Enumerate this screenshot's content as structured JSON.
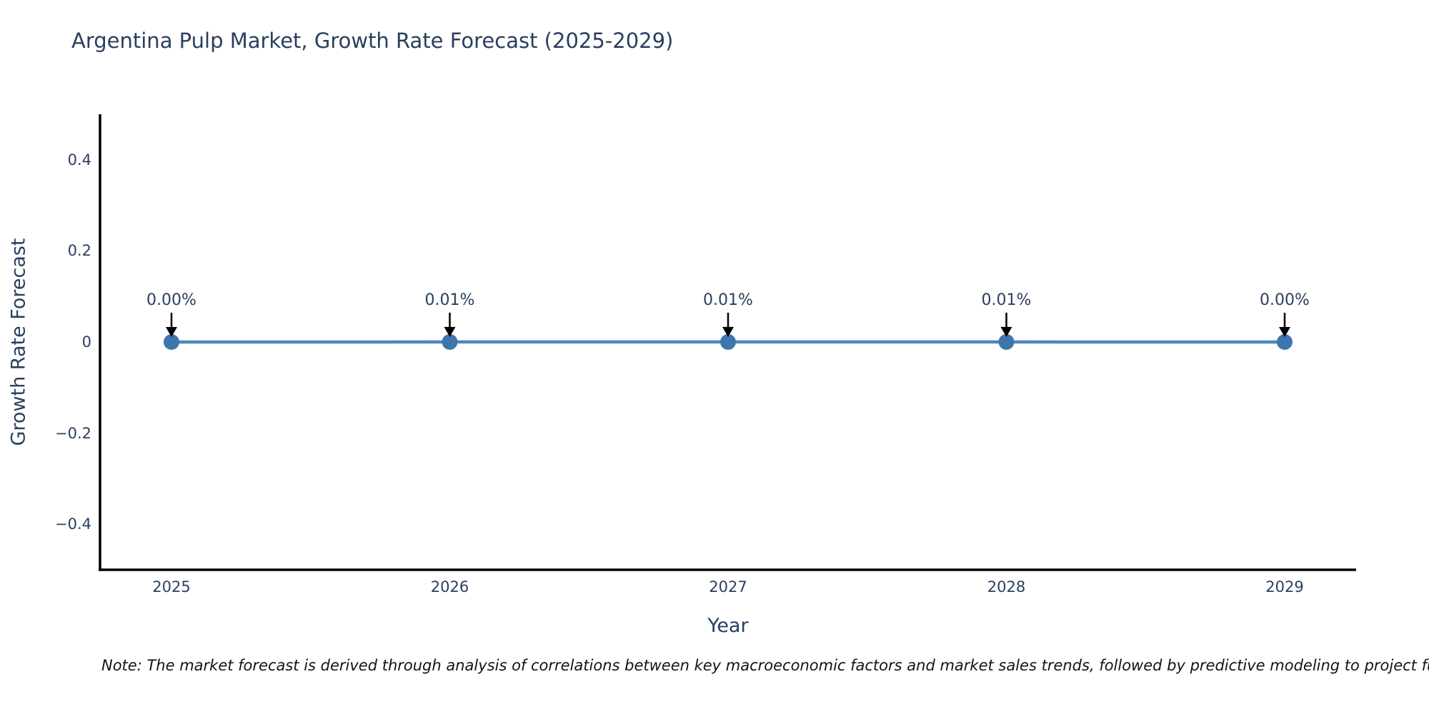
{
  "figure": {
    "note": "Note: The market forecast is derived through analysis of correlations between key macroeconomic factors and market sales trends, followed by predictive modeling to project future sa"
  },
  "chart_data": {
    "type": "line",
    "title": "Argentina Pulp Market, Growth Rate Forecast (2025-2029)",
    "xlabel": "Year",
    "ylabel": "Growth Rate Forecast",
    "categories": [
      "2025",
      "2026",
      "2027",
      "2028",
      "2029"
    ],
    "series": [
      {
        "name": "Growth Rate Forecast",
        "values_percent": [
          0.0,
          0.01,
          0.01,
          0.01,
          0.0
        ],
        "point_labels": [
          "0.00%",
          "0.01%",
          "0.01%",
          "0.01%",
          "0.00%"
        ]
      }
    ],
    "yticks": [
      {
        "value": 0.4,
        "label": "0.4"
      },
      {
        "value": 0.2,
        "label": "0.2"
      },
      {
        "value": 0,
        "label": "0"
      },
      {
        "value": -0.2,
        "label": "−0.2"
      },
      {
        "value": -0.4,
        "label": "−0.4"
      }
    ],
    "ylim": [
      -0.5,
      0.5
    ],
    "grid": false,
    "legend": false,
    "annotation_style": "percent-label-with-black-down-arrow",
    "colors": {
      "line": "#4f86bf",
      "marker": "#3d76af",
      "axis_line": "#000000",
      "text": "#2a3f5f",
      "note_text": "#141414",
      "arrow": "#000000",
      "background": "#ffffff"
    }
  }
}
